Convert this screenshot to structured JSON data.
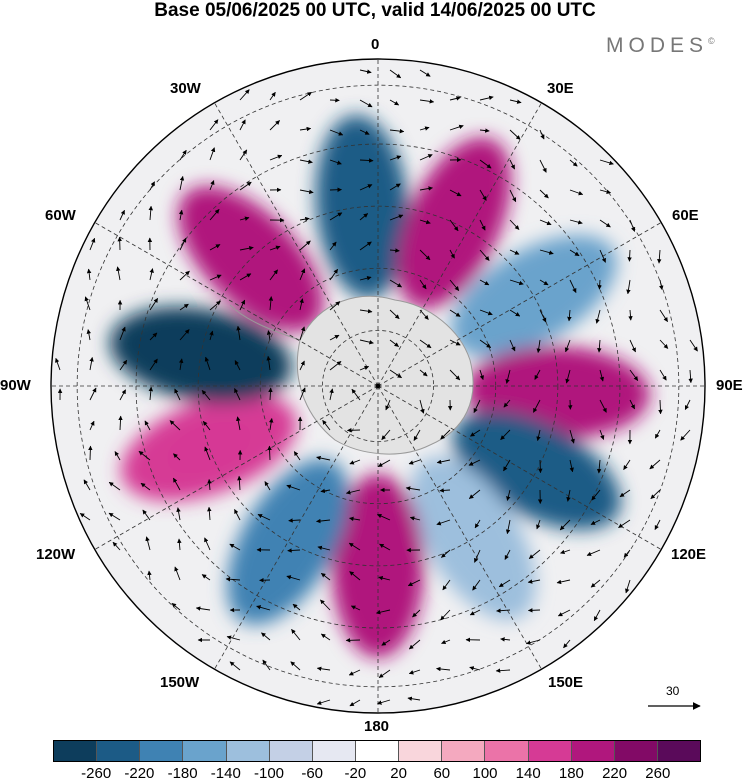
{
  "title": "Base 05/06/2025 00 UTC, valid 14/06/2025 00 UTC",
  "brand": "MODES",
  "brand_mark": "©",
  "longitude_labels": {
    "lon_0": "0",
    "lon_30e": "30E",
    "lon_60e": "60E",
    "lon_90e": "90E",
    "lon_120e": "120E",
    "lon_150e": "150E",
    "lon_180": "180",
    "lon_150w": "150W",
    "lon_120w": "120W",
    "lon_90w": "90W",
    "lon_60w": "60W",
    "lon_30w": "30W"
  },
  "reference_vector": {
    "value": "30"
  },
  "colorbar": {
    "colors": [
      "#0d3d5c",
      "#1c5b86",
      "#3f82b3",
      "#6aa3cc",
      "#9dbfdd",
      "#c4d0e6",
      "#e6e8f2",
      "#ffffff",
      "#f9d6dc",
      "#f4a9bf",
      "#eb73a8",
      "#d63a95",
      "#b0177d",
      "#820a66",
      "#5a0a5a"
    ],
    "ticks": [
      "-260",
      "-220",
      "-180",
      "-140",
      "-100",
      "-60",
      "-20",
      "20",
      "60",
      "100",
      "140",
      "180",
      "220",
      "260"
    ]
  },
  "anomaly_lobes": [
    {
      "lon": -5,
      "color": "#1c5b86"
    },
    {
      "lon": 25,
      "color": "#b0177d"
    },
    {
      "lon": 60,
      "color": "#6aa3cc"
    },
    {
      "lon": 92,
      "color": "#b0177d"
    },
    {
      "lon": 118,
      "color": "#1c5b86"
    },
    {
      "lon": 148,
      "color": "#9dbfdd"
    },
    {
      "lon": 180,
      "color": "#b0177d"
    },
    {
      "lon": -150,
      "color": "#3f82b3"
    },
    {
      "lon": -110,
      "color": "#d63a95"
    },
    {
      "lon": -80,
      "color": "#0d3d5c"
    },
    {
      "lon": -45,
      "color": "#b0177d"
    }
  ]
}
